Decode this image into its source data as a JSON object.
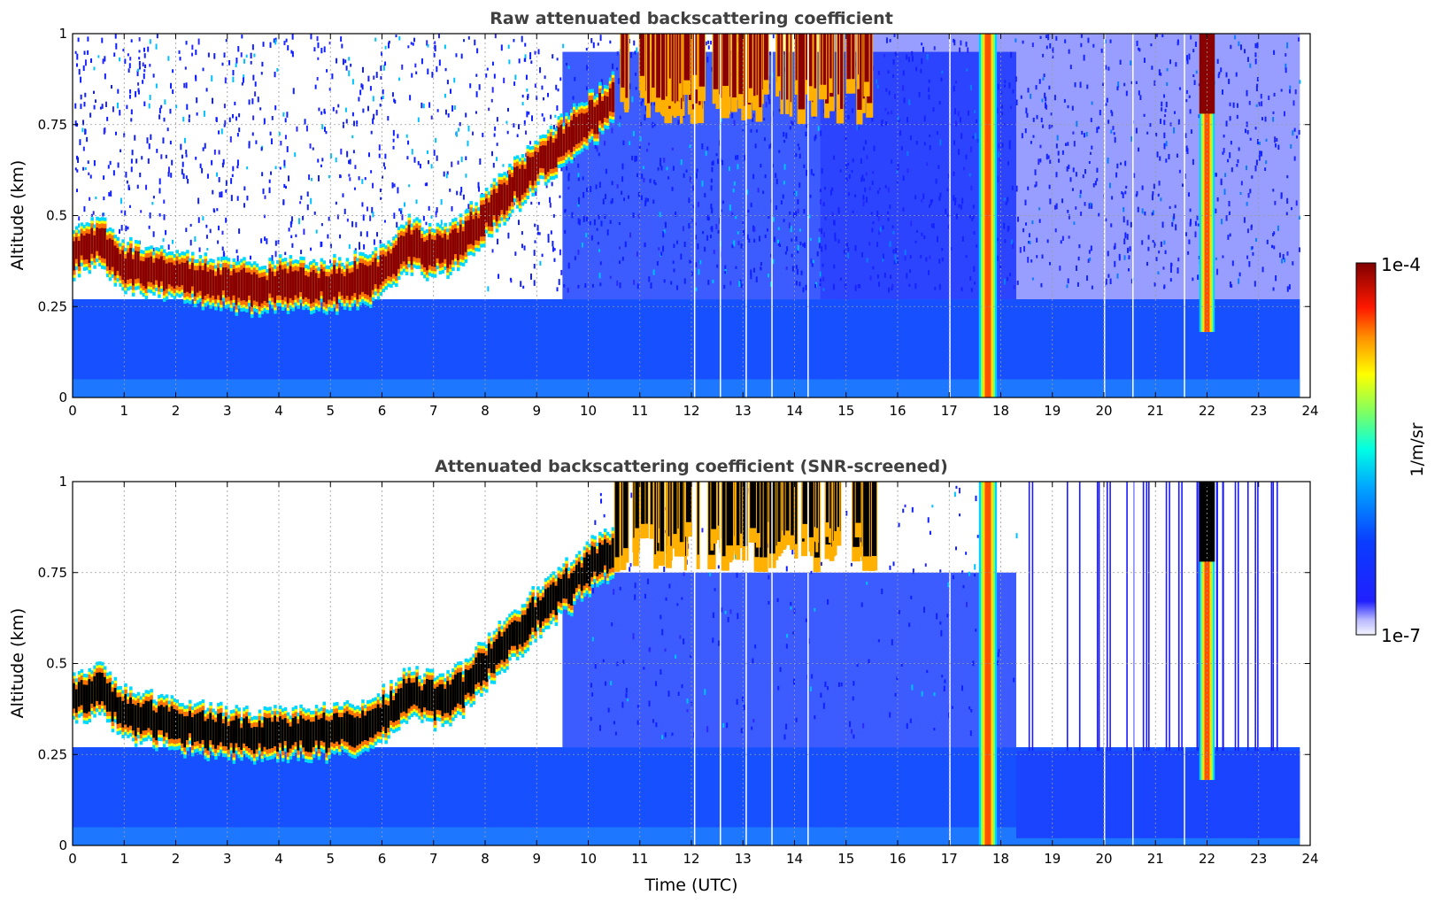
{
  "chart_data": [
    {
      "type": "heatmap",
      "title": "Raw attenuated backscattering coefficient",
      "xlabel": "",
      "ylabel": "Altitude (km)",
      "xlim": [
        0,
        24
      ],
      "ylim": [
        0,
        1
      ],
      "x_ticks": [
        "0",
        "1",
        "2",
        "3",
        "4",
        "5",
        "6",
        "7",
        "8",
        "9",
        "10",
        "11",
        "12",
        "13",
        "14",
        "15",
        "16",
        "17",
        "18",
        "19",
        "20",
        "21",
        "22",
        "23",
        "24"
      ],
      "y_ticks": [
        "0",
        "0.25",
        "0.5",
        "0.75",
        "1"
      ],
      "grid": true,
      "boundary_layer_altitude_km": {
        "x": [
          0,
          0.5,
          1,
          2,
          3,
          3.5,
          4,
          5,
          5.8,
          6.5,
          7,
          7.5,
          8,
          8.5,
          9,
          9.5,
          10,
          10.5
        ],
        "y": [
          0.4,
          0.43,
          0.36,
          0.33,
          0.31,
          0.3,
          0.31,
          0.31,
          0.33,
          0.42,
          0.4,
          0.42,
          0.5,
          0.58,
          0.64,
          0.7,
          0.76,
          0.82
        ]
      },
      "upper_cloud_layer_km": {
        "x_range": [
          10.5,
          15.5
        ],
        "altitude_range": [
          0.75,
          1.0
        ]
      },
      "rain_columns_utc": [
        17.75,
        22.0
      ]
    },
    {
      "type": "heatmap",
      "title": "Attenuated backscattering coefficient (SNR-screened)",
      "xlabel": "Time (UTC)",
      "ylabel": "Altitude (km)",
      "xlim": [
        0,
        24
      ],
      "ylim": [
        0,
        1
      ],
      "x_ticks": [
        "0",
        "1",
        "2",
        "3",
        "4",
        "5",
        "6",
        "7",
        "8",
        "9",
        "10",
        "11",
        "12",
        "13",
        "14",
        "15",
        "16",
        "17",
        "18",
        "19",
        "20",
        "21",
        "22",
        "23",
        "24"
      ],
      "y_ticks": [
        "0",
        "0.25",
        "0.5",
        "0.75",
        "1"
      ],
      "grid": true,
      "screened_top_after_18_utc_km": 0.26
    }
  ],
  "colorbar": {
    "label": "1/m/sr",
    "max_label": "1e-4",
    "min_label": "1e-7",
    "colors": [
      "#ffffff",
      "#1e1eff",
      "#1060ff",
      "#00b0ff",
      "#00ffe0",
      "#80ff60",
      "#ffff00",
      "#ff9000",
      "#ff1800",
      "#880000"
    ]
  }
}
